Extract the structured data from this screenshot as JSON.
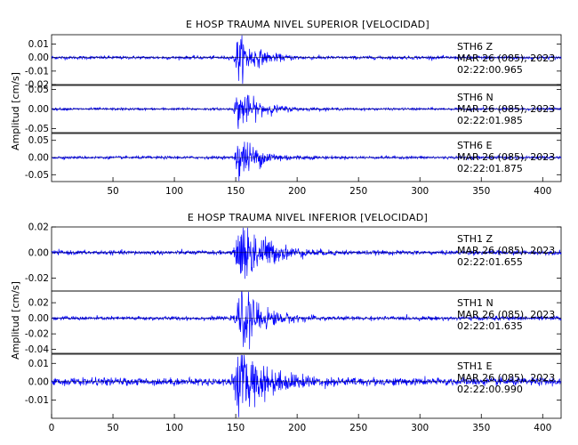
{
  "chart_data": [
    {
      "type": "line",
      "title": "E HOSP TRAUMA NIVEL SUPERIOR [VELOCIDAD]",
      "ylabel": "Amplitud [cm/s]",
      "xlabel": "",
      "xlim": [
        0,
        415
      ],
      "x_ticks": [
        50,
        100,
        150,
        200,
        250,
        300,
        350,
        400
      ],
      "color": "#0000ff",
      "traces": [
        {
          "station": "STH6",
          "component": "Z",
          "date": "MAR 26 (085), 2023",
          "time": "02:22:00.965",
          "ylim": [
            -0.02,
            0.017
          ],
          "y_ticks": [
            0.01,
            0.0,
            -0.01,
            -0.02
          ],
          "tick_labels": [
            "0.01",
            "0.00",
            "-0.01",
            "-0.02"
          ],
          "event": {
            "onset": 148,
            "peak_time": 152,
            "peak": 0.015,
            "noise": 0.0006,
            "decay": 14
          }
        },
        {
          "station": "STH6",
          "component": "N",
          "date": "MAR 26 (085), 2023",
          "time": "02:22:01.985",
          "ylim": [
            -0.06,
            0.06
          ],
          "y_ticks": [
            0.05,
            0.0,
            -0.05
          ],
          "tick_labels": [
            "0.05",
            "0.00",
            "-0.05"
          ],
          "event": {
            "onset": 148,
            "peak_time": 152,
            "peak": 0.045,
            "noise": 0.0015,
            "decay": 16
          }
        },
        {
          "station": "STH6",
          "component": "E",
          "date": "MAR 26 (085), 2023",
          "time": "02:22:01.875",
          "ylim": [
            -0.07,
            0.07
          ],
          "y_ticks": [
            0.05,
            0.0,
            -0.05
          ],
          "tick_labels": [
            "0.05",
            "0.00",
            "-0.05"
          ],
          "event": {
            "onset": 148,
            "peak_time": 152,
            "peak": 0.06,
            "noise": 0.002,
            "decay": 16
          }
        }
      ]
    },
    {
      "type": "line",
      "title": "E HOSP TRAUMA NIVEL INFERIOR [VELOCIDAD]",
      "ylabel": "Amplitud [cm/s]",
      "xlabel": "",
      "xlim": [
        0,
        415
      ],
      "x_ticks": [
        0,
        50,
        100,
        150,
        200,
        250,
        300,
        350,
        400
      ],
      "color": "#0000ff",
      "traces": [
        {
          "station": "STH1",
          "component": "Z",
          "date": "MAR 26 (085), 2023",
          "time": "02:22:01.655",
          "ylim": [
            -0.03,
            0.02
          ],
          "y_ticks": [
            0.02,
            0.0,
            -0.02
          ],
          "tick_labels": [
            "0.02",
            "0.00",
            "-0.02"
          ],
          "event": {
            "onset": 148,
            "peak_time": 156,
            "peak": 0.025,
            "noise": 0.0008,
            "decay": 18
          }
        },
        {
          "station": "STH1",
          "component": "N",
          "date": "MAR 26 (085), 2023",
          "time": "02:22:01.635",
          "ylim": [
            -0.045,
            0.035
          ],
          "y_ticks": [
            0.02,
            0.0,
            -0.02,
            -0.04
          ],
          "tick_labels": [
            "0.02",
            "0.00",
            "-0.02",
            "-0.04"
          ],
          "event": {
            "onset": 148,
            "peak_time": 155,
            "peak": 0.035,
            "noise": 0.0012,
            "decay": 16
          }
        },
        {
          "station": "STH1",
          "component": "E",
          "date": "MAR 26 (085), 2023",
          "time": "02:22:00.990",
          "ylim": [
            -0.02,
            0.015
          ],
          "y_ticks": [
            0.01,
            0.0,
            -0.01
          ],
          "tick_labels": [
            "0.01",
            "0.00",
            "-0.01"
          ],
          "event": {
            "onset": 146,
            "peak_time": 153,
            "peak": 0.016,
            "noise": 0.001,
            "decay": 22
          }
        }
      ]
    }
  ]
}
